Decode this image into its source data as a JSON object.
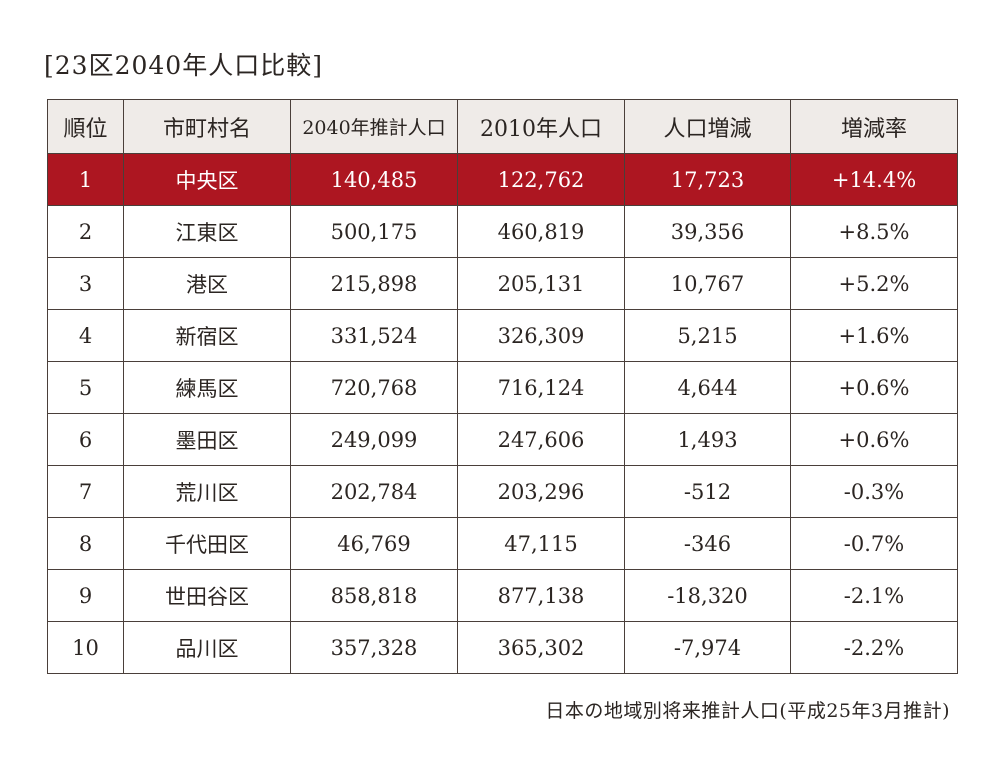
{
  "title": "[23区2040年人口比較]",
  "table": {
    "headers": [
      "順位",
      "市町村名",
      "2040年推計人口",
      "2010年人口",
      "人口増減",
      "増減率"
    ],
    "rows": [
      [
        "1",
        "中央区",
        "140,485",
        "122,762",
        "17,723",
        "+14.4%"
      ],
      [
        "2",
        "江東区",
        "500,175",
        "460,819",
        "39,356",
        "+8.5%"
      ],
      [
        "3",
        "港区",
        "215,898",
        "205,131",
        "10,767",
        "+5.2%"
      ],
      [
        "4",
        "新宿区",
        "331,524",
        "326,309",
        "5,215",
        "+1.6%"
      ],
      [
        "5",
        "練馬区",
        "720,768",
        "716,124",
        "4,644",
        "+0.6%"
      ],
      [
        "6",
        "墨田区",
        "249,099",
        "247,606",
        "1,493",
        "+0.6%"
      ],
      [
        "7",
        "荒川区",
        "202,784",
        "203,296",
        "-512",
        "-0.3%"
      ],
      [
        "8",
        "千代田区",
        "46,769",
        "47,115",
        "-346",
        "-0.7%"
      ],
      [
        "9",
        "世田谷区",
        "858,818",
        "877,138",
        "-18,320",
        "-2.1%"
      ],
      [
        "10",
        "品川区",
        "357,328",
        "365,302",
        "-7,974",
        "-2.2%"
      ]
    ],
    "highlight_color": "#ad1621",
    "header_bg": "#efebe8"
  },
  "source": "日本の地域別将来推計人口(平成25年3月推計)"
}
